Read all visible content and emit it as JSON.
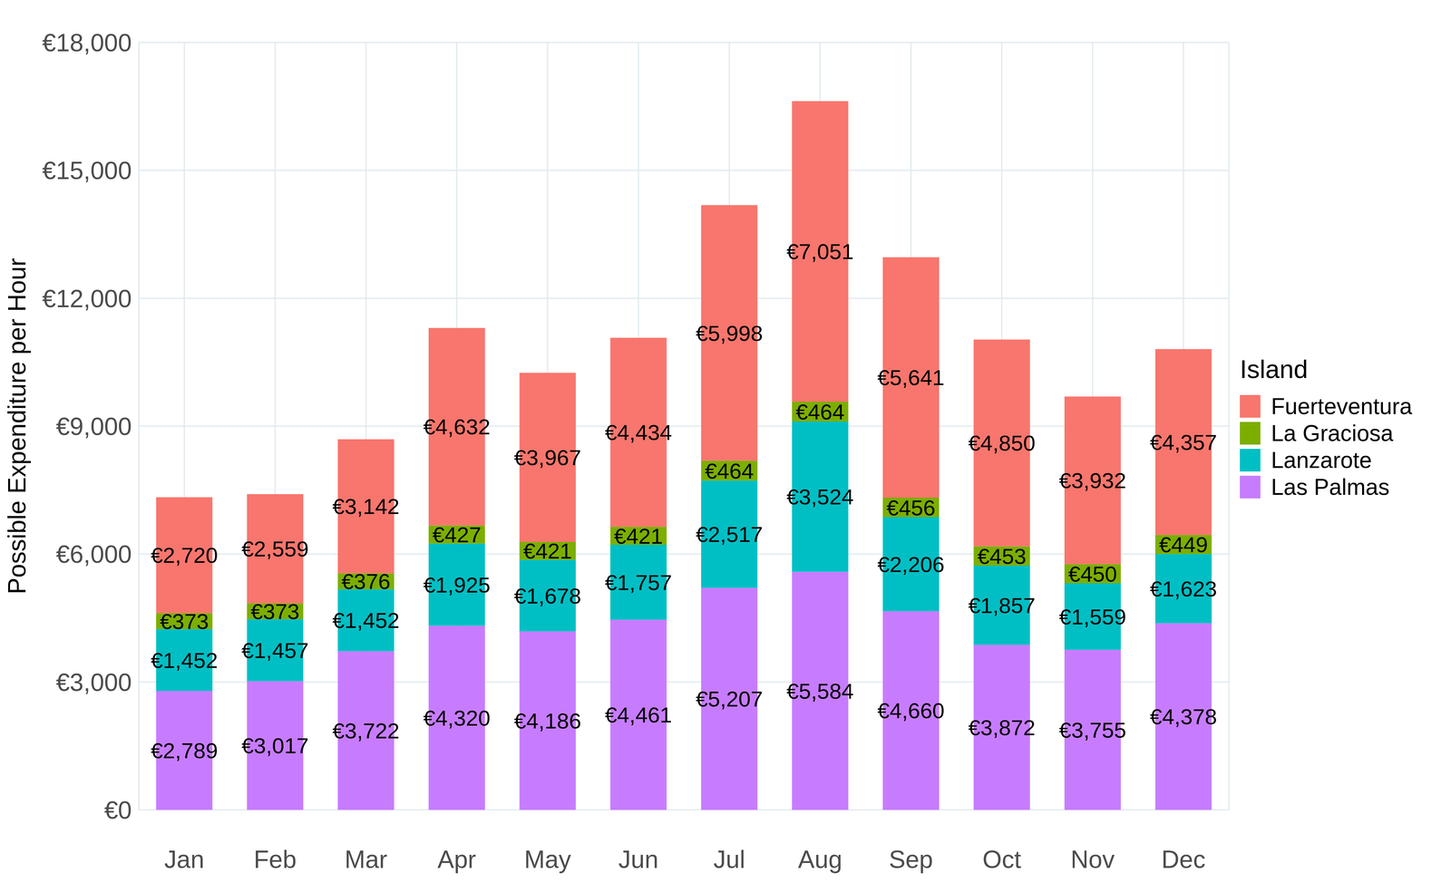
{
  "chart_data": {
    "type": "bar",
    "stacked": true,
    "data_labels": true,
    "grid": true,
    "legend": "right",
    "legend_title": "Island",
    "y_label": "Possible Expenditure per Hour",
    "categories": [
      "Jan",
      "Feb",
      "Mar",
      "Apr",
      "May",
      "Jun",
      "Jul",
      "Aug",
      "Sep",
      "Oct",
      "Nov",
      "Dec"
    ],
    "ylim": [
      0,
      18000
    ],
    "yticks": [
      {
        "value": 0,
        "label": "€0"
      },
      {
        "value": 3000,
        "label": "€3,000"
      },
      {
        "value": 6000,
        "label": "€6,000"
      },
      {
        "value": 9000,
        "label": "€9,000"
      },
      {
        "value": 12000,
        "label": "€12,000"
      },
      {
        "value": 15000,
        "label": "€15,000"
      },
      {
        "value": 18000,
        "label": "€18,000"
      }
    ],
    "series": [
      {
        "name": "Fuerteventura",
        "color": "#F8766D",
        "values": [
          2720,
          2559,
          3142,
          4632,
          3967,
          4434,
          5998,
          7051,
          5641,
          4850,
          3932,
          4357
        ],
        "value_labels": [
          "€2,720",
          "€2,559",
          "€3,142",
          "€4,632",
          "€3,967",
          "€4,434",
          "€5,998",
          "€7,051",
          "€5,641",
          "€4,850",
          "€3,932",
          "€4,357"
        ]
      },
      {
        "name": "La Graciosa",
        "color": "#7CAE00",
        "values": [
          373,
          373,
          376,
          427,
          421,
          421,
          464,
          464,
          456,
          453,
          450,
          449
        ],
        "value_labels": [
          "€373",
          "€373",
          "€376",
          "€427",
          "€421",
          "€421",
          "€464",
          "€464",
          "€456",
          "€453",
          "€450",
          "€449"
        ]
      },
      {
        "name": "Lanzarote",
        "color": "#00BFC4",
        "values": [
          1452,
          1457,
          1452,
          1925,
          1678,
          1757,
          2517,
          3524,
          2206,
          1857,
          1559,
          1623
        ],
        "value_labels": [
          "€1,452",
          "€1,457",
          "€1,452",
          "€1,925",
          "€1,678",
          "€1,757",
          "€2,517",
          "€3,524",
          "€2,206",
          "€1,857",
          "€1,559",
          "€1,623"
        ]
      },
      {
        "name": "Las Palmas",
        "color": "#C77CFF",
        "values": [
          2789,
          3017,
          3722,
          4320,
          4186,
          4461,
          5207,
          5584,
          4660,
          3872,
          3755,
          4378
        ],
        "value_labels": [
          "€2,789",
          "€3,017",
          "€3,722",
          "€4,320",
          "€4,186",
          "€4,461",
          "€5,207",
          "€5,584",
          "€4,660",
          "€3,872",
          "€3,755",
          "€4,378"
        ]
      }
    ]
  }
}
